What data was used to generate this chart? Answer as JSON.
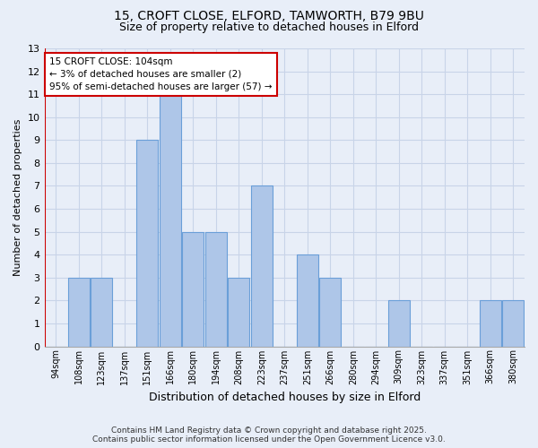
{
  "title1": "15, CROFT CLOSE, ELFORD, TAMWORTH, B79 9BU",
  "title2": "Size of property relative to detached houses in Elford",
  "xlabel": "Distribution of detached houses by size in Elford",
  "ylabel": "Number of detached properties",
  "categories": [
    "94sqm",
    "108sqm",
    "123sqm",
    "137sqm",
    "151sqm",
    "166sqm",
    "180sqm",
    "194sqm",
    "208sqm",
    "223sqm",
    "237sqm",
    "251sqm",
    "266sqm",
    "280sqm",
    "294sqm",
    "309sqm",
    "323sqm",
    "337sqm",
    "351sqm",
    "366sqm",
    "380sqm"
  ],
  "values": [
    0,
    3,
    3,
    0,
    9,
    11,
    5,
    5,
    3,
    7,
    0,
    4,
    3,
    0,
    0,
    2,
    0,
    0,
    0,
    2,
    2
  ],
  "bar_color": "#aec6e8",
  "bar_edge_color": "#6a9fd8",
  "ylim": [
    0,
    13
  ],
  "yticks": [
    0,
    1,
    2,
    3,
    4,
    5,
    6,
    7,
    8,
    9,
    10,
    11,
    12,
    13
  ],
  "marker_label_line1": "15 CROFT CLOSE: 104sqm",
  "marker_label_line2": "← 3% of detached houses are smaller (2)",
  "marker_label_line3": "95% of semi-detached houses are larger (57) →",
  "vline_color": "#cc0000",
  "annotation_box_color": "#ffffff",
  "annotation_box_edge": "#cc0000",
  "footer": "Contains HM Land Registry data © Crown copyright and database right 2025.\nContains public sector information licensed under the Open Government Licence v3.0.",
  "grid_color": "#c8d4e8",
  "background_color": "#e8eef8",
  "title_fontsize": 10,
  "subtitle_fontsize": 9,
  "xlabel_fontsize": 9,
  "ylabel_fontsize": 8,
  "tick_fontsize": 8,
  "xtick_fontsize": 7,
  "footer_fontsize": 6.5
}
